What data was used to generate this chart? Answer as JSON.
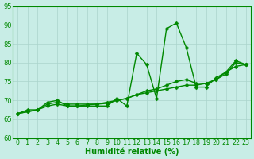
{
  "title": "",
  "xlabel": "Humidité relative (%)",
  "ylabel": "",
  "background_color": "#c8ede6",
  "grid_color": "#aad4cc",
  "line_color": "#008800",
  "x_values": [
    0,
    1,
    2,
    3,
    4,
    5,
    6,
    7,
    8,
    9,
    10,
    11,
    12,
    13,
    14,
    15,
    16,
    17,
    18,
    19,
    20,
    21,
    22,
    23
  ],
  "series1": [
    66.5,
    67.5,
    67.5,
    69.5,
    70.0,
    68.5,
    68.5,
    68.5,
    68.5,
    68.5,
    70.5,
    68.5,
    82.5,
    79.5,
    70.5,
    89.0,
    90.5,
    84.0,
    73.5,
    73.5,
    76.0,
    77.5,
    80.5,
    79.5
  ],
  "series2": [
    66.5,
    67.0,
    67.5,
    68.5,
    69.0,
    68.5,
    68.5,
    68.8,
    69.0,
    69.2,
    70.0,
    70.5,
    71.5,
    72.0,
    72.5,
    73.0,
    73.5,
    74.0,
    74.0,
    74.5,
    75.5,
    77.5,
    79.0,
    79.5
  ],
  "series3": [
    66.5,
    67.0,
    67.5,
    69.0,
    69.5,
    69.0,
    69.0,
    69.0,
    69.0,
    69.5,
    70.0,
    70.5,
    71.5,
    72.5,
    73.0,
    74.0,
    75.0,
    75.5,
    74.5,
    74.5,
    75.5,
    77.0,
    80.0,
    79.5
  ],
  "ylim": [
    60,
    95
  ],
  "yticks": [
    60,
    65,
    70,
    75,
    80,
    85,
    90,
    95
  ],
  "xlim": [
    -0.5,
    23.5
  ],
  "figsize": [
    3.2,
    2.0
  ],
  "dpi": 100,
  "line_width": 1.0,
  "marker_size": 2.5,
  "font_size": 6,
  "xlabel_fontsize": 7,
  "xlabel_fontweight": "bold"
}
